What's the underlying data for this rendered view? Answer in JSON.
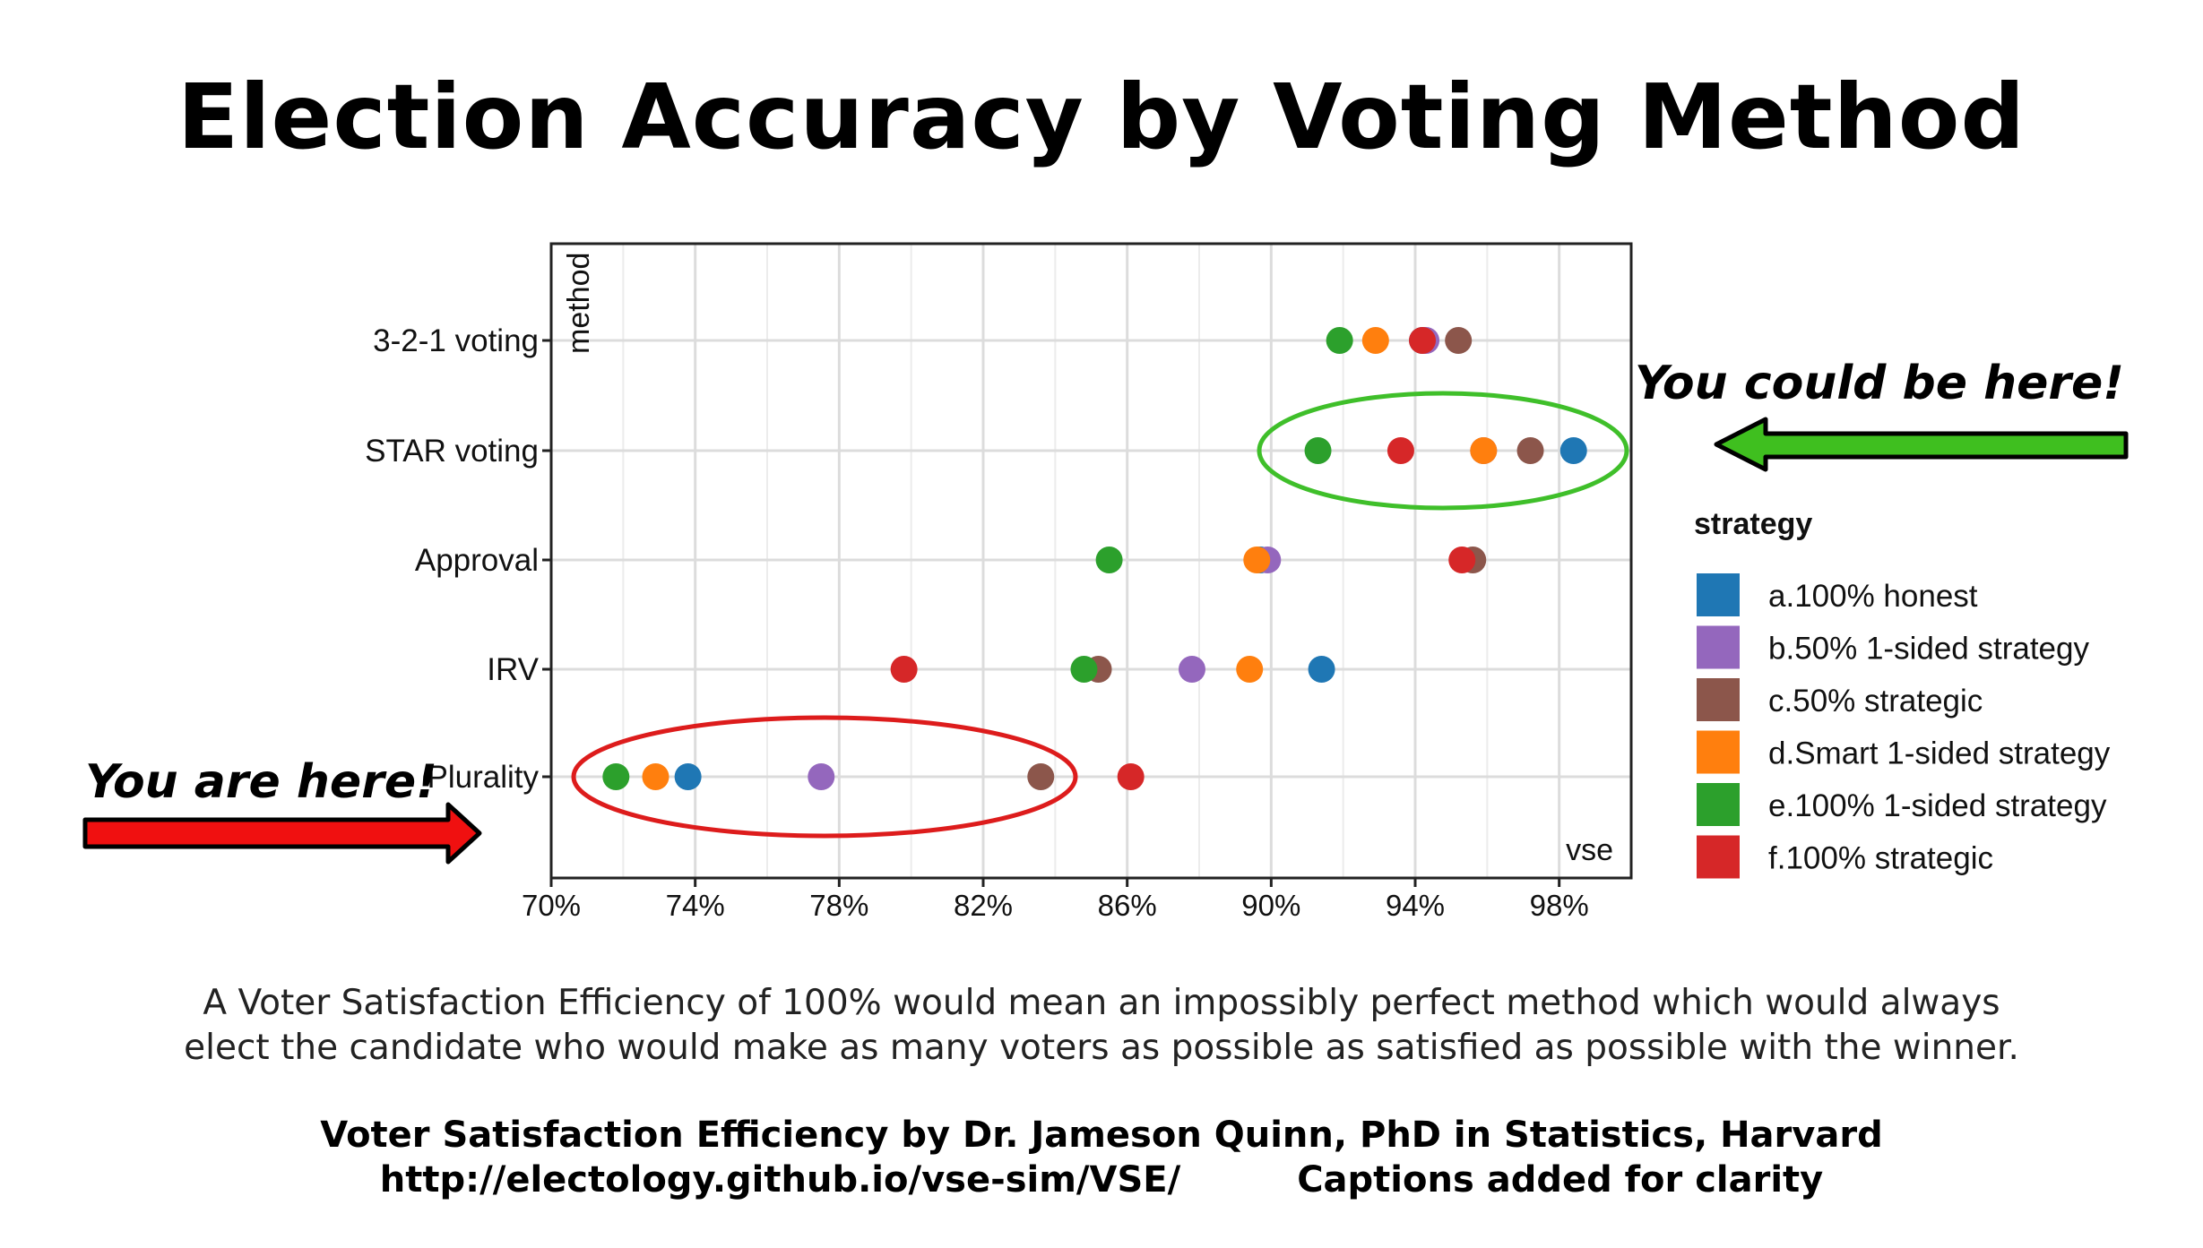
{
  "title": "Election Accuracy by Voting Method",
  "callouts": {
    "right": "You could be here!",
    "left": "You are here!"
  },
  "caption": {
    "line1": "A Voter Satisfaction Efficiency of 100% would mean an impossibly perfect method which would always",
    "line2": "elect the candidate who would make as many voters as possible as satisfied as possible with the winner."
  },
  "credit": {
    "line1": "Voter Satisfaction Efficiency by Dr. Jameson Quinn, PhD in Statistics, Harvard",
    "url": "http://electology.github.io/vse-sim/VSE/",
    "note": "Captions added for clarity"
  },
  "colors": {
    "highlight_good": "#3fbf2a",
    "highlight_bad": "#dd1c1c",
    "arrow_green": "#3fbf1f",
    "arrow_red": "#f01010"
  },
  "chart_data": {
    "type": "scatter",
    "xlabel": "vse",
    "ylabel": "method",
    "xlim": [
      70,
      100
    ],
    "x_ticks": [
      70,
      74,
      78,
      82,
      86,
      90,
      94,
      98
    ],
    "x_tick_labels": [
      "70%",
      "74%",
      "78%",
      "82%",
      "86%",
      "90%",
      "94%",
      "98%"
    ],
    "categories": [
      "3-2-1 voting",
      "STAR voting",
      "Approval",
      "IRV",
      "Plurality"
    ],
    "grid": true,
    "legend": {
      "title": "strategy",
      "position": "right"
    },
    "series": [
      {
        "name": "a.100% honest",
        "color": "#1f77b4",
        "values": [
          94.2,
          98.4,
          89.7,
          91.4,
          73.8
        ]
      },
      {
        "name": "b.50% 1-sided strategy",
        "color": "#9467bd",
        "values": [
          94.3,
          95.9,
          89.9,
          87.8,
          77.5
        ]
      },
      {
        "name": "c.50% strategic",
        "color": "#8c564b",
        "values": [
          95.2,
          97.2,
          95.6,
          85.2,
          83.6
        ]
      },
      {
        "name": "d.Smart 1-sided strategy",
        "color": "#ff7f0e",
        "values": [
          92.9,
          95.9,
          89.6,
          89.4,
          72.9
        ]
      },
      {
        "name": "e.100% 1-sided strategy",
        "color": "#2ca02c",
        "values": [
          91.9,
          91.3,
          85.5,
          84.8,
          71.8
        ]
      },
      {
        "name": "f.100% strategic",
        "color": "#d62728",
        "values": [
          94.2,
          93.6,
          95.3,
          79.8,
          86.1
        ]
      }
    ]
  }
}
